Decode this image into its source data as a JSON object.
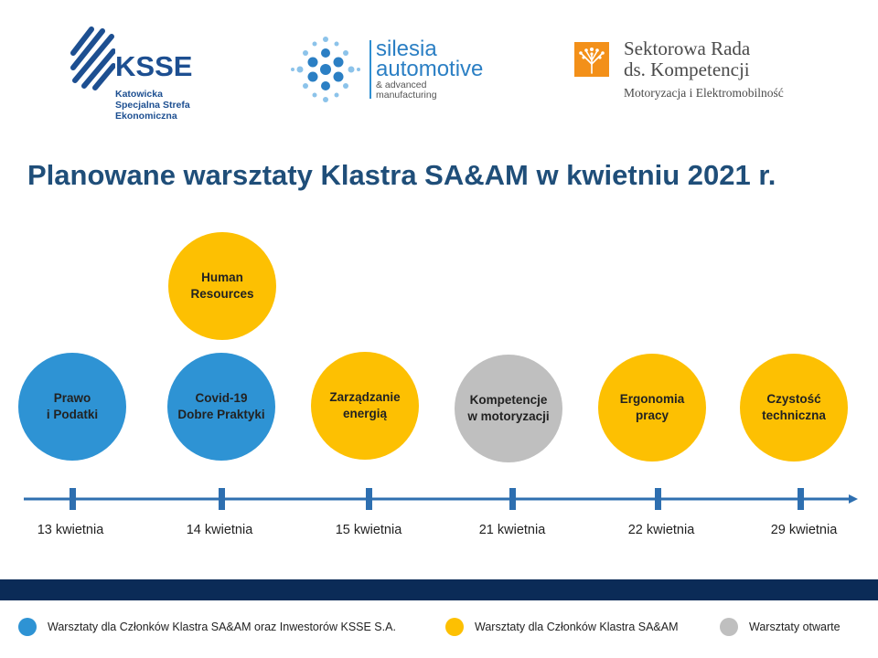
{
  "colors": {
    "blue": "#2e93d4",
    "yellow": "#fdc002",
    "gray": "#bfbfbf",
    "title": "#1f4e79",
    "axis": "#2e6fb0",
    "footer_band": "#0b2b57"
  },
  "logos": {
    "ksse": {
      "name": "KSSE",
      "subtitle_lines": [
        "Katowicka",
        "Specjalna Strefa",
        "Ekonomiczna"
      ]
    },
    "silesia": {
      "line1": "silesia",
      "line2": "automotive",
      "line3": "& advanced",
      "line4": "manufacturing"
    },
    "srk": {
      "line1": "Sektorowa Rada",
      "line2": "ds. Kompetencji",
      "line3": "Motoryzacja i Elektromobilność"
    }
  },
  "title": "Planowane warsztaty Klastra SA&AM w kwietniu 2021 r.",
  "workshops": [
    {
      "label": "Prawo\ni Podatki",
      "category": "blue",
      "date_index": 0
    },
    {
      "label": "Covid-19\nDobre Praktyki",
      "category": "blue",
      "date_index": 1
    },
    {
      "label": "Human\nResources",
      "category": "yellow",
      "date_index": 1
    },
    {
      "label": "Zarządzanie\nenergią",
      "category": "yellow",
      "date_index": 2
    },
    {
      "label": "Kompetencje\nw motoryzacji",
      "category": "gray",
      "date_index": 3
    },
    {
      "label": "Ergonomia\npracy",
      "category": "yellow",
      "date_index": 4
    },
    {
      "label": "Czystość\ntechniczna",
      "category": "yellow",
      "date_index": 5
    }
  ],
  "dates": [
    "13 kwietnia",
    "14 kwietnia",
    "15 kwietnia",
    "21 kwietnia",
    "22 kwietnia",
    "29 kwietnia"
  ],
  "legend": [
    {
      "color_key": "blue",
      "text": "Warsztaty dla Członków Klastra SA&AM oraz Inwestorów KSSE S.A."
    },
    {
      "color_key": "yellow",
      "text": "Warsztaty dla Członków Klastra SA&AM"
    },
    {
      "color_key": "gray",
      "text": "Warsztaty otwarte"
    }
  ]
}
